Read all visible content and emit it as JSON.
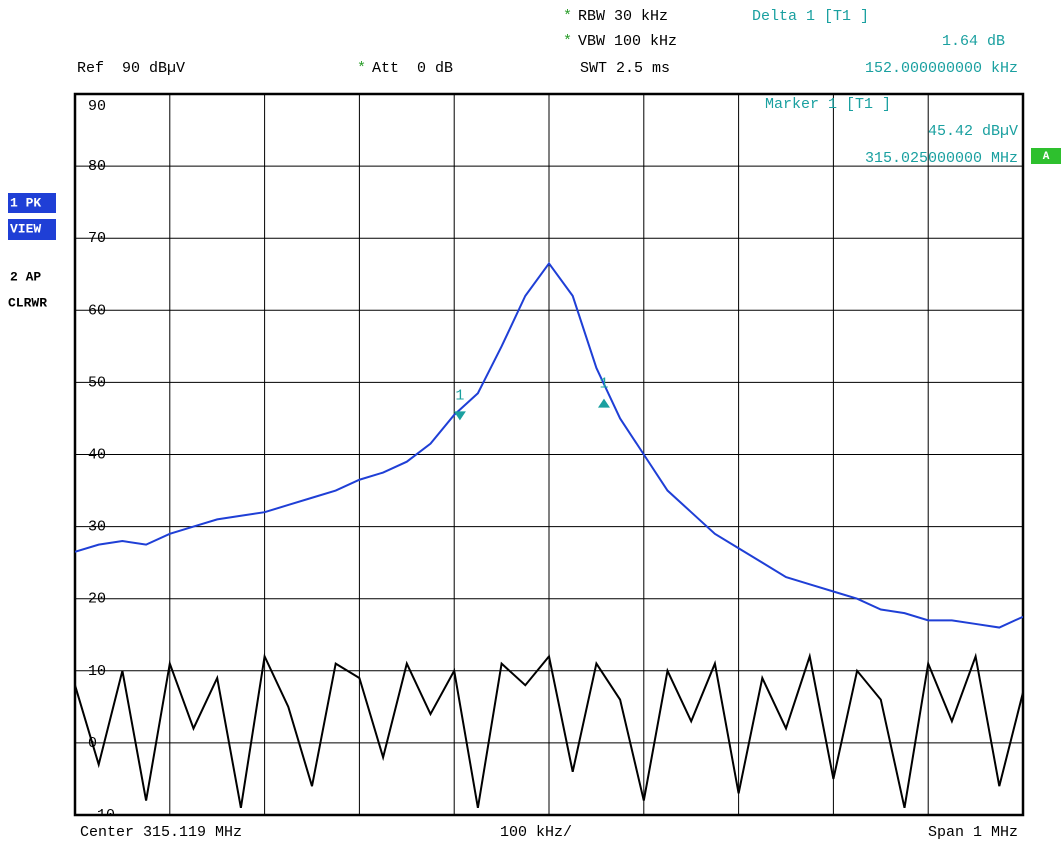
{
  "chart_data": {
    "type": "line",
    "header": {
      "star": "*",
      "rbw": "RBW 30 kHz",
      "vbw": "VBW 100 kHz",
      "swt": "SWT 2.5 ms",
      "ref": "Ref  90 dBµV",
      "att": "Att  0 dB",
      "delta_title": "Delta 1 [T1 ]",
      "delta_level": "1.64 dB",
      "delta_freq": "152.000000000 kHz",
      "marker_title": "Marker 1 [T1 ]",
      "marker_level": "45.42 dBµV",
      "marker_freq": "315.025000000 MHz"
    },
    "side_labels": {
      "trace1": "1 PK",
      "trace1_mode": "VIEW",
      "trace2": "2 AP",
      "trace2_mode": "CLRWR",
      "display": "A"
    },
    "footer": {
      "center": "Center 315.119 MHz",
      "div": "100 kHz/",
      "span": "Span 1 MHz"
    },
    "xlim": [
      314.619,
      315.619
    ],
    "xticks": [
      314.619,
      314.719,
      314.819,
      314.919,
      315.019,
      315.119,
      315.219,
      315.319,
      315.419,
      315.519,
      315.619
    ],
    "ylim": [
      -10,
      90
    ],
    "yticks": [
      90,
      80,
      70,
      60,
      50,
      40,
      30,
      20,
      10,
      0,
      -10
    ],
    "grid": true,
    "x": [
      314.619,
      314.644,
      314.669,
      314.694,
      314.719,
      314.744,
      314.769,
      314.794,
      314.819,
      314.844,
      314.869,
      314.894,
      314.919,
      314.944,
      314.969,
      314.994,
      315.019,
      315.044,
      315.069,
      315.094,
      315.119,
      315.144,
      315.169,
      315.194,
      315.219,
      315.244,
      315.269,
      315.294,
      315.319,
      315.344,
      315.369,
      315.394,
      315.419,
      315.444,
      315.469,
      315.494,
      315.519,
      315.544,
      315.569,
      315.594,
      315.619
    ],
    "series": [
      {
        "name": "1 PK",
        "color": "#1f3fd6",
        "values": [
          26.5,
          27.5,
          28,
          27.5,
          29,
          30,
          31,
          31.5,
          32,
          33,
          34,
          35,
          36.5,
          37.5,
          39,
          41.5,
          45.5,
          48.5,
          55,
          62,
          66.5,
          62,
          52,
          45,
          40,
          35,
          32,
          29,
          27,
          25,
          23,
          22,
          21,
          20,
          18.5,
          18,
          17,
          17,
          16.5,
          16,
          17.5
        ]
      },
      {
        "name": "2 AP",
        "color": "#000000",
        "values": [
          8,
          -3,
          10,
          -8,
          11,
          2,
          9,
          -9,
          12,
          5,
          -6,
          11,
          9,
          -2,
          11,
          4,
          10,
          -9,
          11,
          8,
          12,
          -4,
          11,
          6,
          -8,
          10,
          3,
          11,
          -7,
          9,
          2,
          12,
          -5,
          10,
          6,
          -9,
          11,
          3,
          12,
          -6,
          7
        ]
      }
    ],
    "markers": [
      {
        "label": "1",
        "x": 315.025,
        "value": 45.42,
        "color": "#1aa0a0"
      },
      {
        "label": "1",
        "x": 315.177,
        "value": 47.06,
        "color": "#1aa0a0"
      }
    ]
  }
}
